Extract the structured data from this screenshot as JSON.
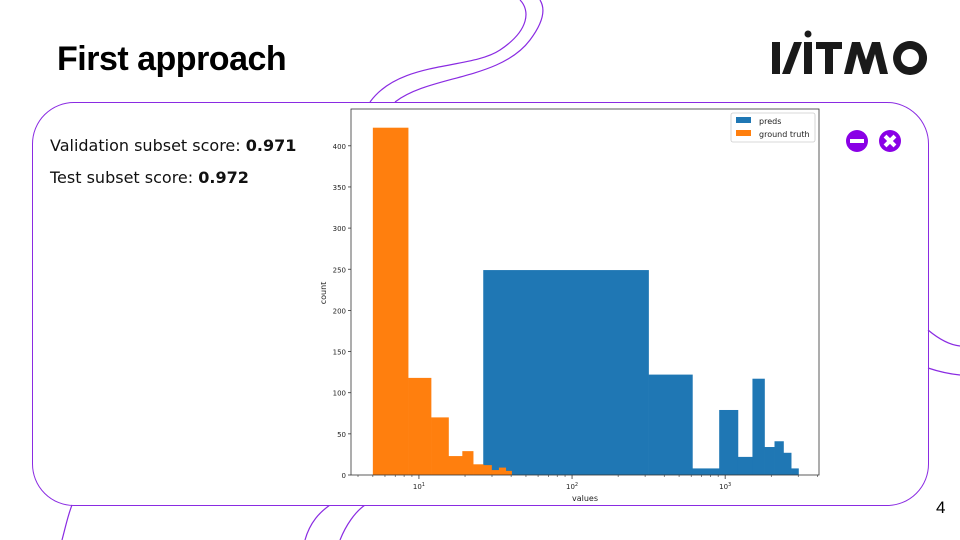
{
  "slide": {
    "title": "First approach",
    "logo": "ITMO",
    "page_number": "4",
    "accent_color": "#8a00e6"
  },
  "scores": {
    "validation_label": "Validation subset score: ",
    "validation_value": "0.971",
    "test_label": "Test subset score: ",
    "test_value": "0.972"
  },
  "icons": [
    "minus-circle-icon",
    "close-circle-icon"
  ],
  "chart_data": {
    "type": "bar",
    "title": "",
    "xlabel": "values",
    "ylabel": "count",
    "xscale": "log",
    "xlim": [
      3.6,
      4100
    ],
    "ylim": [
      0,
      445
    ],
    "yticks": [
      0,
      50,
      100,
      150,
      200,
      250,
      300,
      350,
      400
    ],
    "xticks": [
      {
        "value": 10,
        "label": "10",
        "exp": "1"
      },
      {
        "value": 100,
        "label": "10",
        "exp": "2"
      },
      {
        "value": 1000,
        "label": "10",
        "exp": "3"
      }
    ],
    "legend": {
      "placement": "top-right",
      "entries": [
        "preds",
        "ground truth"
      ]
    },
    "series": [
      {
        "name": "preds",
        "color": "#1f77b4",
        "edges": [
          26.3,
          316,
          611,
          914,
          1212,
          1507,
          1807,
          2100,
          2404,
          2698,
          3012
        ],
        "values": [
          249,
          122,
          8,
          79,
          22,
          117,
          34,
          41,
          27,
          8
        ]
      },
      {
        "name": "ground truth",
        "color": "#ff7f0e",
        "edges": [
          5.0,
          8.5,
          12.0,
          15.6,
          19.2,
          22.6,
          26.3,
          29.8,
          33.3,
          36.9,
          40.3
        ],
        "values": [
          422,
          118,
          70,
          23,
          29,
          13,
          12,
          6,
          9,
          5
        ]
      }
    ]
  }
}
